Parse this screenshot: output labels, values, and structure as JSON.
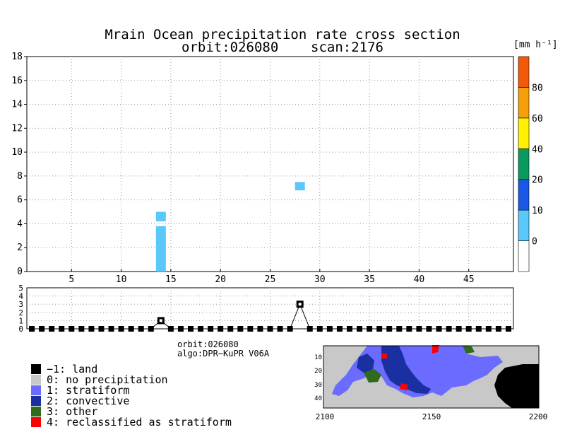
{
  "chart_data": {
    "type": "bar",
    "title": "Mrain Ocean precipitation rate cross section",
    "subtitle": "orbit:026080    scan:2176",
    "colorbar": {
      "unit_label": "[mm h⁻¹]",
      "tick_labels": [
        "0",
        "10",
        "20",
        "40",
        "60",
        "80"
      ],
      "colors": [
        "#ffffff",
        "#5ac8fa",
        "#1a57e6",
        "#0a9a5e",
        "#fff200",
        "#f5a00a",
        "#f25a0a"
      ]
    },
    "main_panel": {
      "xlim": [
        0.5,
        49.5
      ],
      "ylim": [
        0,
        18
      ],
      "x_ticks": [
        5,
        10,
        15,
        20,
        25,
        30,
        35,
        40,
        45
      ],
      "y_ticks": [
        0,
        2,
        4,
        6,
        8,
        10,
        12,
        14,
        16,
        18
      ],
      "grid": true,
      "cells": [
        {
          "x": 14,
          "y0": 0.0,
          "y1": 3.8,
          "color": "#5ac8fa"
        },
        {
          "x": 14,
          "y0": 4.2,
          "y1": 5.0,
          "color": "#5ac8fa"
        },
        {
          "x": 28,
          "y0": 6.8,
          "y1": 7.5,
          "color": "#5ac8fa"
        }
      ]
    },
    "type_panel": {
      "xlim": [
        0.5,
        49.5
      ],
      "ylim": [
        0,
        5
      ],
      "y_ticks": [
        0,
        1,
        2,
        3,
        4,
        5
      ],
      "grid": true,
      "x": [
        1,
        2,
        3,
        4,
        5,
        6,
        7,
        8,
        9,
        10,
        11,
        12,
        13,
        14,
        15,
        16,
        17,
        18,
        19,
        20,
        21,
        22,
        23,
        24,
        25,
        26,
        27,
        28,
        29,
        30,
        31,
        32,
        33,
        34,
        35,
        36,
        37,
        38,
        39,
        40,
        41,
        42,
        43,
        44,
        45,
        46,
        47,
        48,
        49
      ],
      "values": [
        0,
        0,
        0,
        0,
        0,
        0,
        0,
        0,
        0,
        0,
        0,
        0,
        0,
        1,
        0,
        0,
        0,
        0,
        0,
        0,
        0,
        0,
        0,
        0,
        0,
        0,
        0,
        3,
        0,
        0,
        0,
        0,
        0,
        0,
        0,
        0,
        0,
        0,
        0,
        0,
        0,
        0,
        0,
        0,
        0,
        0,
        0,
        0,
        0
      ]
    },
    "info": {
      "orbit": "orbit:026080",
      "algo": "algo:DPR−KuPR V06A"
    },
    "legend": [
      {
        "label": "−1: land",
        "color": "#000000"
      },
      {
        "label": "0: no precipitation",
        "color": "#c8c8c8"
      },
      {
        "label": "1: stratiform",
        "color": "#6b6bff"
      },
      {
        "label": "2: convective",
        "color": "#1a2fa0"
      },
      {
        "label": "3: other",
        "color": "#2e6b1e"
      },
      {
        "label": "4: reclassified as stratiform",
        "color": "#ff0000"
      }
    ],
    "map": {
      "x_ticks": [
        "2100",
        "2150",
        "2200"
      ],
      "y_ticks": [
        "10",
        "20",
        "30",
        "40"
      ]
    }
  }
}
